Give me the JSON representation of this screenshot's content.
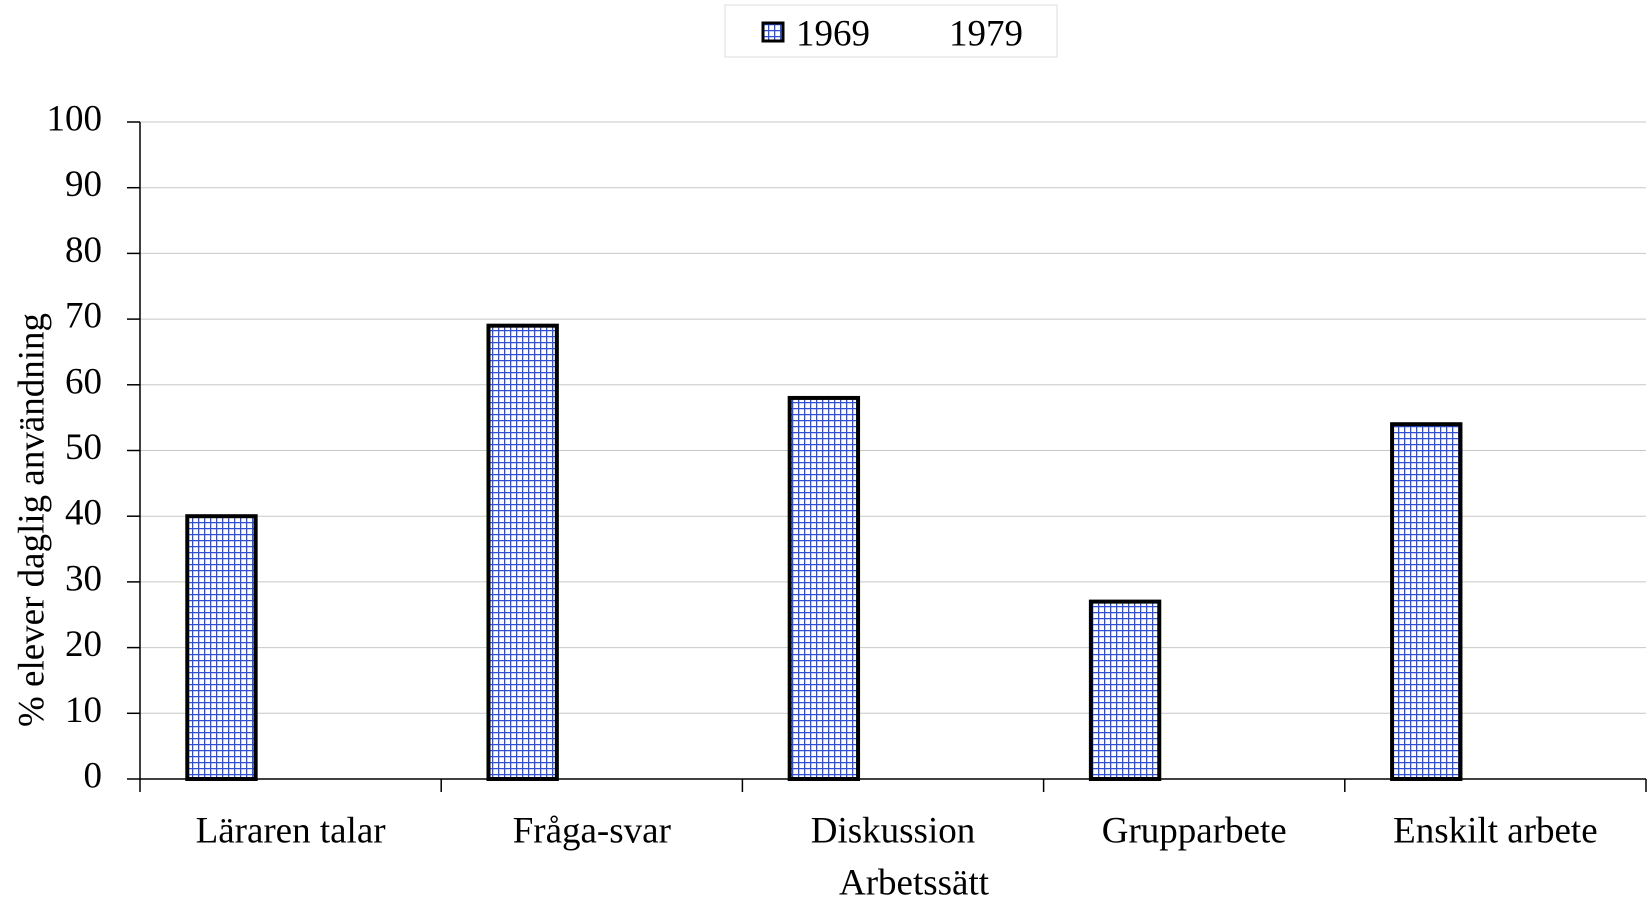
{
  "chart_data": {
    "type": "bar",
    "categories": [
      "Läraren talar",
      "Fråga-svar",
      "Diskussion",
      "Grupparbete",
      "Enskilt arbete"
    ],
    "series": [
      {
        "name": "1969",
        "color": "#2f4fd8",
        "edgecolor": "#000000",
        "values": [
          40,
          69,
          58,
          27,
          54
        ]
      },
      {
        "name": "1979",
        "color": "#ffffff",
        "edgecolor": "#ffffff",
        "values": [
          null,
          null,
          null,
          null,
          null
        ]
      }
    ],
    "xlabel": "Arbetssätt",
    "ylabel": "% elever daglig användning",
    "ylim": [
      0,
      100
    ],
    "yticks": [
      0,
      10,
      20,
      30,
      40,
      50,
      60,
      70,
      80,
      90,
      100
    ],
    "grid": true,
    "legend": "top"
  }
}
